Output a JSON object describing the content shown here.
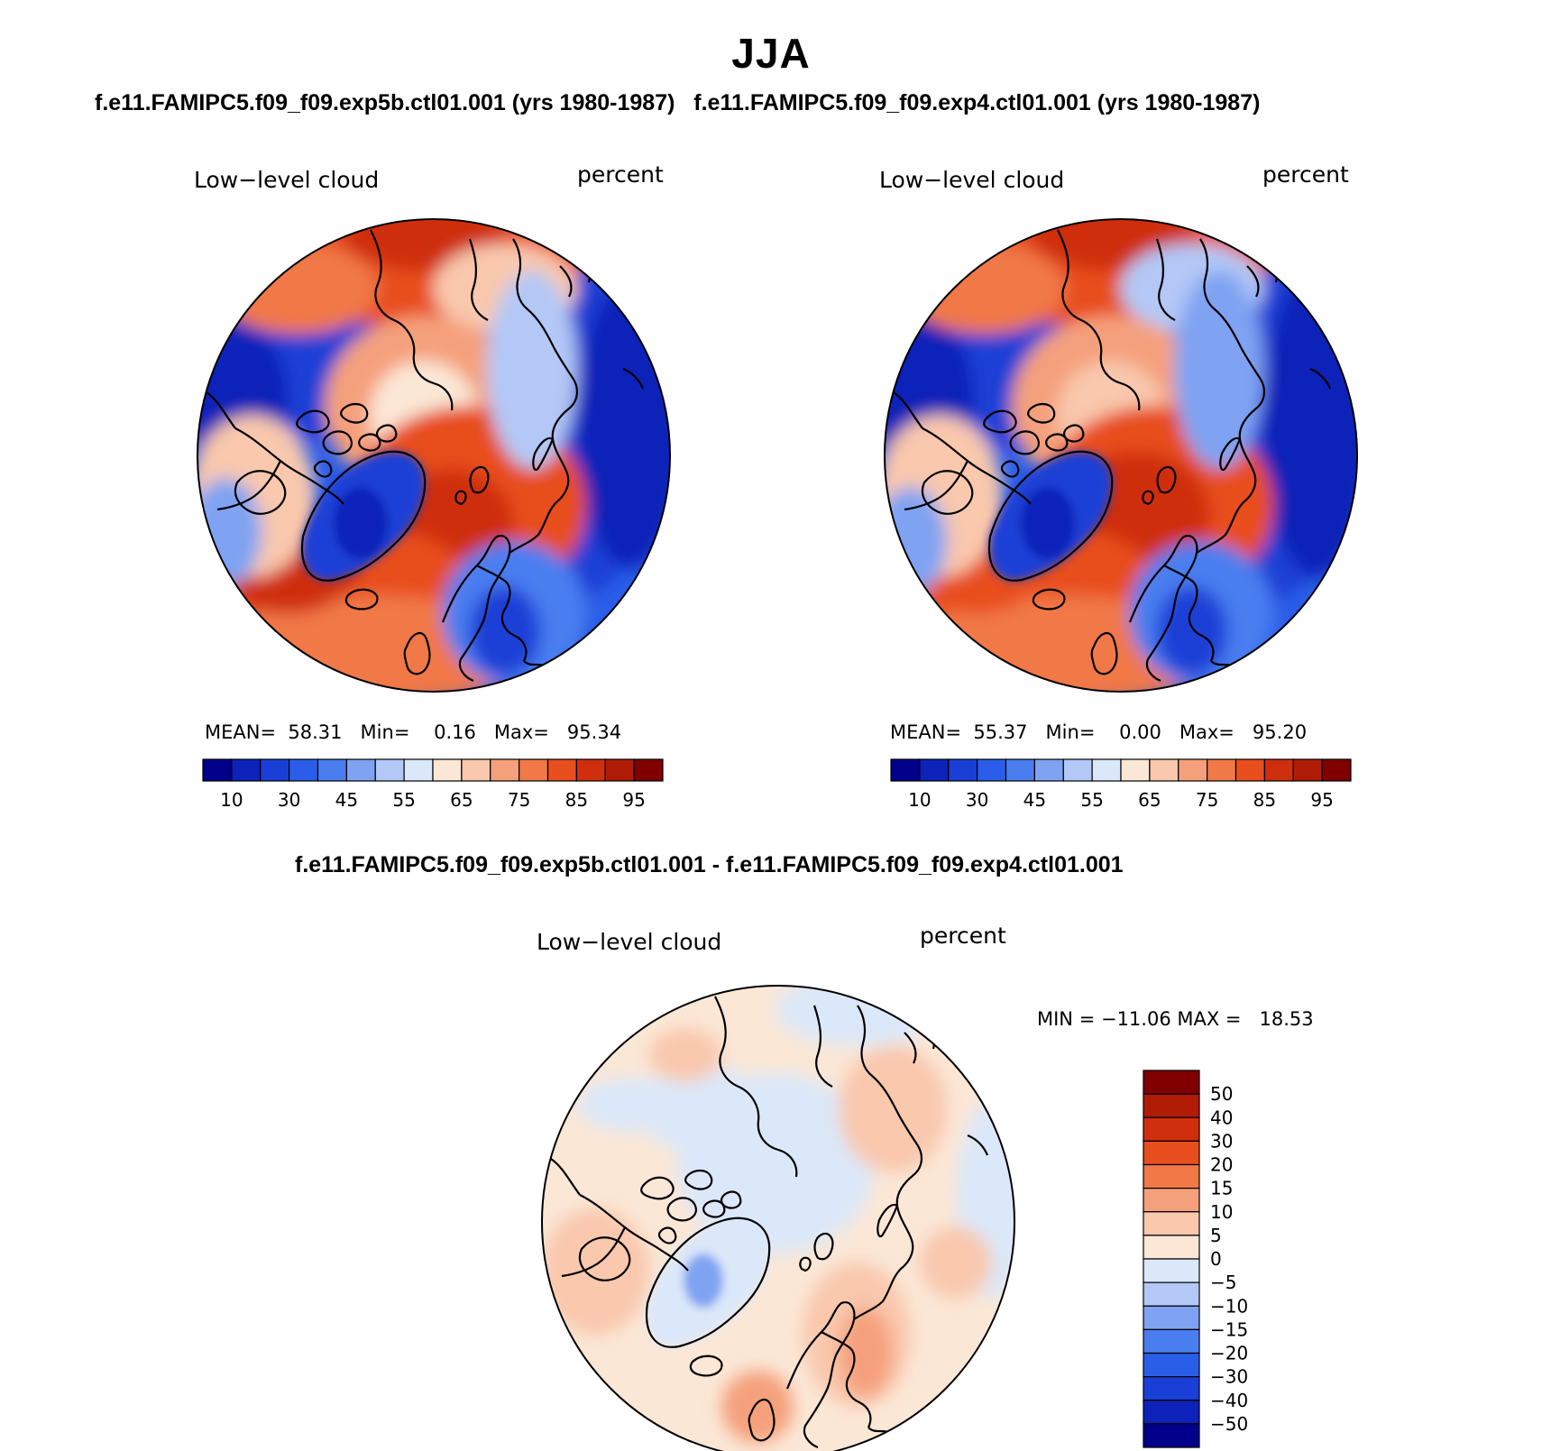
{
  "title": "JJA",
  "top_subtitle": "f.e11.FAMIPC5.f09_f09.exp5b.ctl01.001 (yrs 1980-1987)   f.e11.FAMIPC5.f09_f09.exp4.ctl01.001 (yrs 1980-1987)",
  "bottom_subtitle": "f.e11.FAMIPC5.f09_f09.exp5b.ctl01.001 - f.e11.FAMIPC5.f09_f09.exp4.ctl01.001",
  "panels": [
    {
      "variable": "Low−level cloud",
      "units": "percent",
      "stats": "MEAN=  58.31   Min=    0.16   Max=   95.34"
    },
    {
      "variable": "Low−level cloud",
      "units": "percent",
      "stats": "MEAN=  55.37   Min=    0.00   Max=   95.20"
    },
    {
      "variable": "Low−level cloud",
      "units": "percent",
      "stats": "MIN = −11.06 MAX =   18.53"
    }
  ],
  "colormap": [
    "#00008b",
    "#0c22b8",
    "#1a3fd6",
    "#2a5ee8",
    "#4a7ef0",
    "#7fa3f2",
    "#b3c8f6",
    "#dbe8f9",
    "#fbe7d6",
    "#f9c8ad",
    "#f5a07c",
    "#f17847",
    "#e84e1e",
    "#cf2f0d",
    "#b01c06",
    "#800000"
  ],
  "chart_data": [
    {
      "type": "heatmap",
      "title": "Low−level cloud",
      "units": "percent",
      "colorbar_labels": [
        "10",
        "30",
        "45",
        "55",
        "65",
        "75",
        "85",
        "95"
      ],
      "mean": 58.31,
      "min": 0.16,
      "max": 95.34
    },
    {
      "type": "heatmap",
      "title": "Low−level cloud",
      "units": "percent",
      "colorbar_labels": [
        "10",
        "30",
        "45",
        "55",
        "65",
        "75",
        "85",
        "95"
      ],
      "mean": 55.37,
      "min": 0.0,
      "max": 95.2
    },
    {
      "type": "heatmap",
      "title": "Low−level cloud",
      "units": "percent",
      "colorbar_labels": [
        "50",
        "40",
        "30",
        "20",
        "15",
        "10",
        "5",
        "0",
        "−5",
        "−10",
        "−15",
        "−20",
        "−30",
        "−40",
        "−50"
      ],
      "min": -11.06,
      "max": 18.53
    }
  ]
}
